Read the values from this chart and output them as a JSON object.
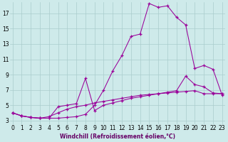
{
  "bg_color": "#ceeaea",
  "grid_color": "#aacccc",
  "line_color": "#990099",
  "xlabel": "Windchill (Refroidissement éolien,°C)",
  "xlabel_color": "#660066",
  "yticks": [
    3,
    5,
    7,
    9,
    11,
    13,
    15,
    17
  ],
  "xticks": [
    0,
    1,
    2,
    3,
    4,
    5,
    6,
    7,
    8,
    9,
    10,
    11,
    12,
    13,
    14,
    15,
    16,
    17,
    18,
    19,
    20,
    21,
    22,
    23
  ],
  "xlim": [
    -0.3,
    23.3
  ],
  "ylim": [
    2.5,
    18.5
  ],
  "line1_x": [
    0,
    1,
    2,
    3,
    4,
    5,
    6,
    7,
    8,
    9,
    10,
    11,
    12,
    13,
    14,
    15,
    16,
    17,
    18,
    19,
    20,
    21,
    22,
    23
  ],
  "line1_y": [
    4.0,
    3.6,
    3.4,
    3.3,
    3.5,
    4.0,
    4.5,
    4.8,
    5.0,
    5.3,
    5.5,
    5.7,
    5.9,
    6.1,
    6.3,
    6.4,
    6.5,
    6.6,
    6.7,
    6.8,
    6.9,
    6.5,
    6.5,
    6.5
  ],
  "line2_x": [
    0,
    1,
    2,
    3,
    4,
    5,
    6,
    7,
    8,
    9,
    10,
    11,
    12,
    13,
    14,
    15,
    16,
    17,
    18,
    19,
    20,
    21,
    22,
    23
  ],
  "line2_y": [
    4.0,
    3.6,
    3.4,
    3.3,
    3.3,
    4.8,
    5.0,
    5.2,
    8.5,
    4.3,
    5.0,
    5.3,
    5.6,
    5.9,
    6.1,
    6.3,
    6.5,
    6.7,
    6.9,
    8.8,
    7.7,
    7.4,
    6.6,
    6.5
  ],
  "line3_x": [
    0,
    1,
    2,
    3,
    4,
    5,
    6,
    7,
    8,
    9,
    10,
    11,
    12,
    13,
    14,
    15,
    16,
    17,
    18,
    19,
    20,
    21,
    22,
    23
  ],
  "line3_y": [
    4.0,
    3.6,
    3.4,
    3.3,
    3.3,
    3.3,
    3.4,
    3.5,
    3.8,
    5.0,
    7.0,
    9.5,
    11.5,
    14.0,
    14.3,
    18.3,
    17.8,
    18.0,
    16.5,
    15.5,
    9.8,
    10.2,
    9.7,
    6.3
  ],
  "tick_fontsize": 5.5,
  "xlabel_fontsize": 5.5
}
